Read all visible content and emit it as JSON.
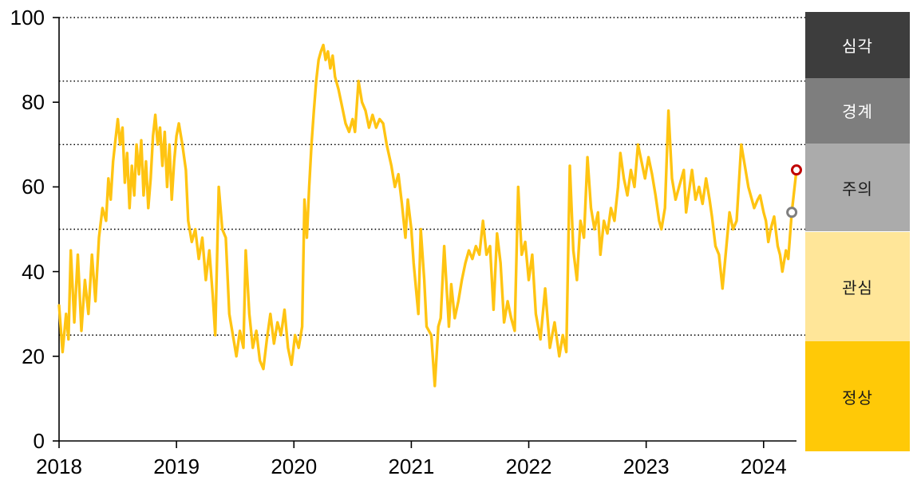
{
  "chart_data": {
    "type": "line",
    "x_range": [
      2018,
      2024.28
    ],
    "y_range": [
      0,
      100
    ],
    "x_ticks": [
      2018,
      2019,
      2020,
      2021,
      2022,
      2023,
      2024
    ],
    "y_ticks": [
      0,
      20,
      40,
      60,
      80,
      100
    ],
    "threshold_lines": [
      25,
      50,
      70,
      85,
      100
    ],
    "grid": "dotted-horizontal",
    "legend_position": "right",
    "line_color": "#FFC412",
    "series": [
      {
        "name": "index",
        "color": "#FFC412",
        "points": [
          [
            2018.0,
            32
          ],
          [
            2018.03,
            21
          ],
          [
            2018.06,
            30
          ],
          [
            2018.08,
            24
          ],
          [
            2018.1,
            45
          ],
          [
            2018.13,
            28
          ],
          [
            2018.16,
            44
          ],
          [
            2018.19,
            26
          ],
          [
            2018.22,
            38
          ],
          [
            2018.25,
            30
          ],
          [
            2018.28,
            44
          ],
          [
            2018.31,
            33
          ],
          [
            2018.34,
            48
          ],
          [
            2018.37,
            55
          ],
          [
            2018.4,
            52
          ],
          [
            2018.42,
            62
          ],
          [
            2018.44,
            57
          ],
          [
            2018.46,
            66
          ],
          [
            2018.48,
            71
          ],
          [
            2018.5,
            76
          ],
          [
            2018.52,
            70
          ],
          [
            2018.54,
            74
          ],
          [
            2018.56,
            61
          ],
          [
            2018.58,
            68
          ],
          [
            2018.6,
            55
          ],
          [
            2018.62,
            65
          ],
          [
            2018.64,
            58
          ],
          [
            2018.66,
            70
          ],
          [
            2018.68,
            63
          ],
          [
            2018.7,
            71
          ],
          [
            2018.72,
            58
          ],
          [
            2018.74,
            66
          ],
          [
            2018.76,
            55
          ],
          [
            2018.78,
            62
          ],
          [
            2018.8,
            72
          ],
          [
            2018.82,
            77
          ],
          [
            2018.84,
            70
          ],
          [
            2018.86,
            74
          ],
          [
            2018.88,
            65
          ],
          [
            2018.9,
            73
          ],
          [
            2018.92,
            60
          ],
          [
            2018.94,
            70
          ],
          [
            2018.96,
            57
          ],
          [
            2018.98,
            66
          ],
          [
            2019.0,
            72
          ],
          [
            2019.02,
            75
          ],
          [
            2019.05,
            70
          ],
          [
            2019.08,
            64
          ],
          [
            2019.1,
            52
          ],
          [
            2019.13,
            47
          ],
          [
            2019.16,
            50
          ],
          [
            2019.19,
            43
          ],
          [
            2019.22,
            48
          ],
          [
            2019.25,
            38
          ],
          [
            2019.28,
            45
          ],
          [
            2019.31,
            34
          ],
          [
            2019.33,
            25
          ],
          [
            2019.36,
            60
          ],
          [
            2019.39,
            50
          ],
          [
            2019.42,
            48
          ],
          [
            2019.45,
            30
          ],
          [
            2019.48,
            25
          ],
          [
            2019.51,
            20
          ],
          [
            2019.54,
            26
          ],
          [
            2019.57,
            22
          ],
          [
            2019.59,
            45
          ],
          [
            2019.62,
            30
          ],
          [
            2019.65,
            22
          ],
          [
            2019.68,
            26
          ],
          [
            2019.71,
            19
          ],
          [
            2019.74,
            17
          ],
          [
            2019.77,
            24
          ],
          [
            2019.8,
            30
          ],
          [
            2019.83,
            23
          ],
          [
            2019.86,
            28
          ],
          [
            2019.89,
            25
          ],
          [
            2019.92,
            31
          ],
          [
            2019.95,
            22
          ],
          [
            2019.98,
            18
          ],
          [
            2020.01,
            25
          ],
          [
            2020.04,
            22
          ],
          [
            2020.07,
            27
          ],
          [
            2020.09,
            57
          ],
          [
            2020.11,
            48
          ],
          [
            2020.13,
            60
          ],
          [
            2020.15,
            70
          ],
          [
            2020.17,
            78
          ],
          [
            2020.19,
            85
          ],
          [
            2020.21,
            90
          ],
          [
            2020.23,
            92
          ],
          [
            2020.25,
            93.5
          ],
          [
            2020.27,
            90
          ],
          [
            2020.29,
            92
          ],
          [
            2020.31,
            88
          ],
          [
            2020.33,
            91
          ],
          [
            2020.35,
            86
          ],
          [
            2020.38,
            83
          ],
          [
            2020.41,
            79
          ],
          [
            2020.44,
            75
          ],
          [
            2020.47,
            73
          ],
          [
            2020.5,
            76
          ],
          [
            2020.52,
            73
          ],
          [
            2020.55,
            85
          ],
          [
            2020.58,
            80
          ],
          [
            2020.61,
            78
          ],
          [
            2020.64,
            74
          ],
          [
            2020.67,
            77
          ],
          [
            2020.7,
            74
          ],
          [
            2020.73,
            76
          ],
          [
            2020.76,
            75
          ],
          [
            2020.79,
            70
          ],
          [
            2020.83,
            65
          ],
          [
            2020.86,
            60
          ],
          [
            2020.89,
            63
          ],
          [
            2020.92,
            56
          ],
          [
            2020.95,
            48
          ],
          [
            2020.97,
            57
          ],
          [
            2021.0,
            50
          ],
          [
            2021.02,
            42
          ],
          [
            2021.06,
            30
          ],
          [
            2021.08,
            50
          ],
          [
            2021.11,
            38
          ],
          [
            2021.13,
            27
          ],
          [
            2021.17,
            25
          ],
          [
            2021.2,
            13
          ],
          [
            2021.23,
            27
          ],
          [
            2021.25,
            29
          ],
          [
            2021.28,
            46
          ],
          [
            2021.32,
            27
          ],
          [
            2021.34,
            37
          ],
          [
            2021.37,
            29
          ],
          [
            2021.4,
            33
          ],
          [
            2021.43,
            38
          ],
          [
            2021.46,
            42
          ],
          [
            2021.49,
            45
          ],
          [
            2021.52,
            43
          ],
          [
            2021.55,
            46
          ],
          [
            2021.58,
            44
          ],
          [
            2021.61,
            52
          ],
          [
            2021.64,
            44
          ],
          [
            2021.67,
            46
          ],
          [
            2021.7,
            31
          ],
          [
            2021.73,
            49
          ],
          [
            2021.76,
            42
          ],
          [
            2021.79,
            28
          ],
          [
            2021.82,
            33
          ],
          [
            2021.85,
            29
          ],
          [
            2021.88,
            26
          ],
          [
            2021.91,
            60
          ],
          [
            2021.94,
            44
          ],
          [
            2021.97,
            47
          ],
          [
            2022.0,
            38
          ],
          [
            2022.03,
            44
          ],
          [
            2022.06,
            30
          ],
          [
            2022.1,
            24
          ],
          [
            2022.14,
            36
          ],
          [
            2022.18,
            22
          ],
          [
            2022.22,
            28
          ],
          [
            2022.26,
            20
          ],
          [
            2022.29,
            25
          ],
          [
            2022.32,
            21
          ],
          [
            2022.35,
            65
          ],
          [
            2022.38,
            45
          ],
          [
            2022.41,
            38
          ],
          [
            2022.44,
            52
          ],
          [
            2022.47,
            48
          ],
          [
            2022.5,
            67
          ],
          [
            2022.53,
            55
          ],
          [
            2022.56,
            50
          ],
          [
            2022.59,
            54
          ],
          [
            2022.61,
            44
          ],
          [
            2022.64,
            52
          ],
          [
            2022.67,
            49
          ],
          [
            2022.7,
            55
          ],
          [
            2022.73,
            52
          ],
          [
            2022.76,
            60
          ],
          [
            2022.78,
            68
          ],
          [
            2022.81,
            62
          ],
          [
            2022.84,
            58
          ],
          [
            2022.87,
            64
          ],
          [
            2022.9,
            60
          ],
          [
            2022.93,
            70
          ],
          [
            2022.96,
            66
          ],
          [
            2022.99,
            62
          ],
          [
            2023.02,
            67
          ],
          [
            2023.05,
            63
          ],
          [
            2023.08,
            58
          ],
          [
            2023.11,
            52
          ],
          [
            2023.13,
            50
          ],
          [
            2023.16,
            55
          ],
          [
            2023.19,
            78
          ],
          [
            2023.22,
            62
          ],
          [
            2023.25,
            57
          ],
          [
            2023.28,
            60
          ],
          [
            2023.32,
            64
          ],
          [
            2023.34,
            54
          ],
          [
            2023.36,
            58
          ],
          [
            2023.39,
            64
          ],
          [
            2023.42,
            57
          ],
          [
            2023.45,
            60
          ],
          [
            2023.48,
            56
          ],
          [
            2023.51,
            62
          ],
          [
            2023.54,
            57
          ],
          [
            2023.56,
            53
          ],
          [
            2023.59,
            46
          ],
          [
            2023.62,
            44
          ],
          [
            2023.65,
            36
          ],
          [
            2023.68,
            45
          ],
          [
            2023.71,
            54
          ],
          [
            2023.74,
            50
          ],
          [
            2023.77,
            52
          ],
          [
            2023.81,
            70
          ],
          [
            2023.84,
            65
          ],
          [
            2023.87,
            60
          ],
          [
            2023.9,
            57
          ],
          [
            2023.92,
            55
          ],
          [
            2023.95,
            57
          ],
          [
            2023.97,
            58
          ],
          [
            2024.0,
            54
          ],
          [
            2024.02,
            52
          ],
          [
            2024.04,
            47
          ],
          [
            2024.06,
            50
          ],
          [
            2024.09,
            53
          ],
          [
            2024.12,
            46
          ],
          [
            2024.14,
            44
          ],
          [
            2024.16,
            40
          ],
          [
            2024.19,
            45
          ],
          [
            2024.21,
            43
          ],
          [
            2024.24,
            54
          ],
          [
            2024.28,
            64
          ]
        ]
      }
    ],
    "markers": [
      {
        "name": "previous-point",
        "year": 2024.24,
        "value": 54,
        "color": "#7F7F7F"
      },
      {
        "name": "latest-point",
        "year": 2024.28,
        "value": 64,
        "color": "#C00000"
      }
    ],
    "bands": [
      {
        "label": "심각",
        "range": [
          85,
          100
        ],
        "bg": "#3D3D3D",
        "fg": "#FFFFFF"
      },
      {
        "label": "경계",
        "range": [
          70,
          85
        ],
        "bg": "#7E7E7E",
        "fg": "#FFFFFF"
      },
      {
        "label": "주의",
        "range": [
          50,
          70
        ],
        "bg": "#ABABAB",
        "fg": "#1A1A1A"
      },
      {
        "label": "관심",
        "range": [
          25,
          50
        ],
        "bg": "#FFE699",
        "fg": "#1A1A1A"
      },
      {
        "label": "정상",
        "range": [
          0,
          25
        ],
        "bg": "#FFC907",
        "fg": "#1A1A1A"
      }
    ]
  }
}
